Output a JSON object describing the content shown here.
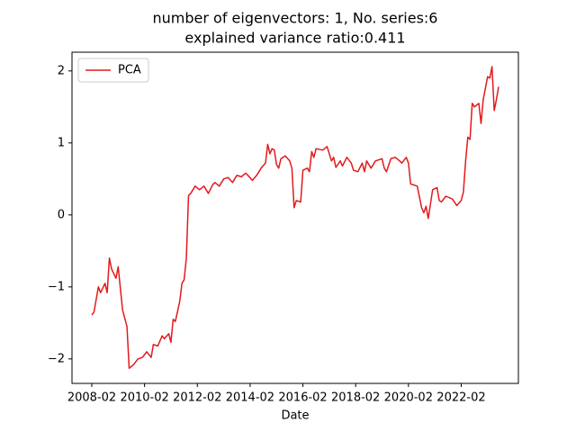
{
  "chart_data": {
    "type": "line",
    "title": [
      "number of eigenvectors: 1, No. series:6",
      "explained variance ratio:0.411"
    ],
    "x_label": "Date",
    "x": [
      "2008-02",
      "2008-03",
      "2008-05",
      "2008-06",
      "2008-08",
      "2008-09",
      "2008-10",
      "2008-11",
      "2009-01",
      "2009-02",
      "2009-04",
      "2009-06",
      "2009-07",
      "2009-09",
      "2009-11",
      "2010-01",
      "2010-03",
      "2010-05",
      "2010-06",
      "2010-08",
      "2010-10",
      "2010-11",
      "2011-01",
      "2011-02",
      "2011-03",
      "2011-04",
      "2011-06",
      "2011-07",
      "2011-08",
      "2011-09",
      "2011-10",
      "2011-11",
      "2012-01",
      "2012-03",
      "2012-05",
      "2012-07",
      "2012-09",
      "2012-10",
      "2012-12",
      "2013-02",
      "2013-04",
      "2013-06",
      "2013-08",
      "2013-10",
      "2013-12",
      "2014-01",
      "2014-03",
      "2014-05",
      "2014-07",
      "2014-09",
      "2014-10",
      "2014-11",
      "2014-12",
      "2015-01",
      "2015-02",
      "2015-03",
      "2015-04",
      "2015-06",
      "2015-08",
      "2015-09",
      "2015-10",
      "2015-11",
      "2016-01",
      "2016-02",
      "2016-04",
      "2016-05",
      "2016-06",
      "2016-07",
      "2016-08",
      "2016-11",
      "2017-01",
      "2017-03",
      "2017-04",
      "2017-05",
      "2017-07",
      "2017-08",
      "2017-10",
      "2017-12",
      "2018-01",
      "2018-03",
      "2018-05",
      "2018-06",
      "2018-07",
      "2018-09",
      "2018-11",
      "2019-02",
      "2019-03",
      "2019-04",
      "2019-06",
      "2019-08",
      "2019-10",
      "2019-11",
      "2020-01",
      "2020-02",
      "2020-03",
      "2020-06",
      "2020-08",
      "2020-09",
      "2020-10",
      "2020-11",
      "2021-01",
      "2021-03",
      "2021-04",
      "2021-05",
      "2021-07",
      "2021-10",
      "2021-12",
      "2022-02",
      "2022-03",
      "2022-04",
      "2022-05",
      "2022-06",
      "2022-07",
      "2022-08",
      "2022-10",
      "2022-11",
      "2022-12",
      "2023-02",
      "2023-03",
      "2023-04",
      "2023-05",
      "2023-06",
      "2023-07"
    ],
    "series": [
      {
        "name": "PCA",
        "color": "#e31a1c",
        "values": [
          -1.39,
          -1.35,
          -1.0,
          -1.08,
          -0.95,
          -1.08,
          -0.6,
          -0.75,
          -0.88,
          -0.72,
          -1.32,
          -1.55,
          -2.13,
          -2.08,
          -2.0,
          -1.98,
          -1.9,
          -1.98,
          -1.8,
          -1.82,
          -1.68,
          -1.72,
          -1.65,
          -1.77,
          -1.45,
          -1.48,
          -1.2,
          -0.95,
          -0.9,
          -0.6,
          0.27,
          0.3,
          0.4,
          0.35,
          0.4,
          0.3,
          0.42,
          0.45,
          0.4,
          0.5,
          0.52,
          0.45,
          0.55,
          0.53,
          0.58,
          0.55,
          0.48,
          0.55,
          0.65,
          0.72,
          0.98,
          0.85,
          0.92,
          0.9,
          0.7,
          0.65,
          0.78,
          0.82,
          0.75,
          0.65,
          0.1,
          0.2,
          0.18,
          0.62,
          0.65,
          0.6,
          0.88,
          0.8,
          0.92,
          0.9,
          0.95,
          0.75,
          0.8,
          0.66,
          0.75,
          0.68,
          0.8,
          0.72,
          0.62,
          0.6,
          0.72,
          0.6,
          0.75,
          0.65,
          0.75,
          0.78,
          0.65,
          0.6,
          0.78,
          0.8,
          0.75,
          0.72,
          0.8,
          0.72,
          0.43,
          0.4,
          0.1,
          0.03,
          0.12,
          -0.05,
          0.35,
          0.38,
          0.2,
          0.18,
          0.26,
          0.22,
          0.13,
          0.2,
          0.32,
          0.75,
          1.08,
          1.05,
          1.55,
          1.5,
          1.55,
          1.27,
          1.6,
          1.92,
          1.9,
          2.06,
          1.45,
          1.6,
          1.78
        ]
      }
    ],
    "xlim": [
      "2007-05",
      "2024-04"
    ],
    "xticks": [
      "2008-02",
      "2010-02",
      "2012-02",
      "2014-02",
      "2016-02",
      "2018-02",
      "2020-02",
      "2022-02"
    ],
    "ylim": [
      -2.34,
      2.26
    ],
    "yticks": [
      {
        "value": -2,
        "label": "−2"
      },
      {
        "value": -1,
        "label": "−1"
      },
      0,
      1,
      2
    ],
    "grid": false,
    "legend": "upper left"
  }
}
